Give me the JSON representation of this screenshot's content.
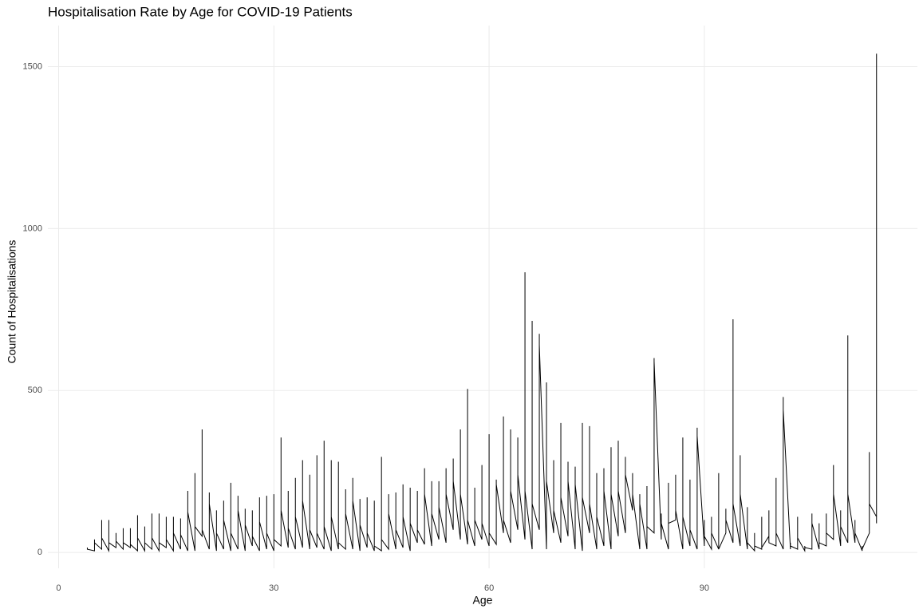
{
  "chart_data": {
    "type": "line",
    "title": "Hospitalisation Rate by Age for COVID-19 Patients",
    "x_label": "Age",
    "y_label": "Count of Hospitalisations",
    "color": "#000000",
    "grid": true,
    "xlim": [
      -1.5,
      119.7
    ],
    "ylim": [
      -49,
      1627
    ],
    "xticks": [
      0,
      30,
      60,
      90
    ],
    "yticks": [
      0,
      500,
      1000,
      1500
    ],
    "x": [
      4,
      4,
      4,
      5,
      5,
      5,
      6,
      6,
      6,
      7,
      7,
      7,
      8,
      8,
      8,
      9,
      9,
      9,
      10,
      10,
      10,
      11,
      11,
      11,
      12,
      12,
      12,
      13,
      13,
      13,
      14,
      14,
      14,
      15,
      15,
      15,
      16,
      16,
      16,
      17,
      17,
      17,
      18,
      18,
      18,
      19,
      19,
      19,
      20,
      20,
      20,
      21,
      21,
      21,
      22,
      22,
      22,
      23,
      23,
      23,
      24,
      24,
      24,
      25,
      25,
      25,
      26,
      26,
      26,
      27,
      27,
      27,
      28,
      28,
      28,
      29,
      29,
      29,
      30,
      30,
      30,
      31,
      31,
      31,
      32,
      32,
      32,
      33,
      33,
      33,
      34,
      34,
      34,
      35,
      35,
      35,
      36,
      36,
      36,
      37,
      37,
      37,
      38,
      38,
      38,
      39,
      39,
      39,
      40,
      40,
      40,
      41,
      41,
      41,
      42,
      42,
      42,
      43,
      43,
      43,
      44,
      44,
      44,
      45,
      45,
      45,
      46,
      46,
      46,
      47,
      47,
      47,
      48,
      48,
      48,
      49,
      49,
      49,
      50,
      50,
      50,
      51,
      51,
      51,
      52,
      52,
      52,
      53,
      53,
      53,
      54,
      54,
      54,
      55,
      55,
      55,
      56,
      56,
      56,
      57,
      57,
      57,
      58,
      58,
      58,
      59,
      59,
      59,
      60,
      60,
      60,
      61,
      61,
      61,
      62,
      62,
      62,
      63,
      63,
      63,
      64,
      64,
      64,
      65,
      65,
      65,
      66,
      66,
      66,
      67,
      67,
      67,
      68,
      68,
      68,
      69,
      69,
      69,
      70,
      70,
      70,
      71,
      71,
      71,
      72,
      72,
      72,
      73,
      73,
      73,
      74,
      74,
      74,
      75,
      75,
      75,
      76,
      76,
      76,
      77,
      77,
      77,
      78,
      78,
      78,
      79,
      79,
      79,
      80,
      80,
      80,
      81,
      81,
      81,
      82,
      82,
      82,
      83,
      83,
      83,
      84,
      84,
      84,
      85,
      85,
      85,
      86,
      86,
      86,
      87,
      87,
      87,
      88,
      88,
      88,
      89,
      89,
      89,
      90,
      90,
      90,
      91,
      91,
      91,
      92,
      92,
      92,
      93,
      93,
      93,
      94,
      94,
      94,
      95,
      95,
      95,
      96,
      96,
      96,
      97,
      97,
      97,
      98,
      98,
      98,
      99,
      99,
      99,
      100,
      100,
      100,
      101,
      101,
      101,
      102,
      102,
      102,
      103,
      103,
      103,
      104,
      104,
      104,
      105,
      105,
      105,
      106,
      106,
      106,
      107,
      107,
      107,
      108,
      108,
      108,
      109,
      109,
      109,
      110,
      110,
      110,
      111,
      111,
      111,
      112,
      112,
      112,
      113,
      113,
      113,
      114,
      114,
      114
    ],
    "values": [
      10,
      15,
      10,
      5,
      40,
      30,
      10,
      100,
      45,
      5,
      100,
      30,
      15,
      60,
      35,
      10,
      75,
      30,
      15,
      75,
      25,
      5,
      115,
      45,
      5,
      80,
      30,
      10,
      120,
      45,
      5,
      120,
      30,
      15,
      110,
      40,
      5,
      110,
      60,
      10,
      105,
      55,
      5,
      190,
      125,
      5,
      245,
      80,
      50,
      380,
      70,
      10,
      185,
      150,
      5,
      130,
      60,
      10,
      160,
      100,
      5,
      215,
      60,
      10,
      175,
      130,
      5,
      135,
      85,
      20,
      130,
      50,
      5,
      170,
      95,
      10,
      175,
      60,
      5,
      180,
      40,
      20,
      355,
      130,
      15,
      190,
      75,
      10,
      230,
      110,
      15,
      285,
      160,
      10,
      240,
      70,
      15,
      300,
      60,
      10,
      345,
      80,
      5,
      285,
      110,
      10,
      280,
      30,
      10,
      195,
      120,
      10,
      230,
      160,
      5,
      165,
      85,
      15,
      170,
      60,
      5,
      160,
      20,
      5,
      295,
      40,
      10,
      180,
      120,
      10,
      185,
      70,
      15,
      210,
      110,
      5,
      200,
      90,
      30,
      190,
      70,
      25,
      260,
      180,
      20,
      220,
      120,
      40,
      220,
      140,
      30,
      260,
      180,
      70,
      290,
      220,
      40,
      380,
      180,
      25,
      505,
      100,
      20,
      200,
      100,
      40,
      270,
      90,
      20,
      365,
      60,
      25,
      225,
      210,
      60,
      420,
      100,
      30,
      380,
      190,
      70,
      355,
      240,
      40,
      865,
      190,
      10,
      715,
      150,
      70,
      675,
      640,
      10,
      525,
      220,
      60,
      285,
      130,
      30,
      400,
      170,
      50,
      280,
      220,
      10,
      265,
      210,
      5,
      400,
      170,
      60,
      390,
      150,
      10,
      245,
      110,
      20,
      260,
      190,
      10,
      325,
      180,
      50,
      345,
      190,
      60,
      295,
      240,
      130,
      245,
      180,
      10,
      180,
      150,
      10,
      205,
      80,
      60,
      600,
      590,
      40,
      120,
      90,
      10,
      215,
      90,
      100,
      240,
      130,
      10,
      355,
      110,
      20,
      225,
      70,
      10,
      385,
      360,
      20,
      100,
      50,
      10,
      110,
      60,
      10,
      245,
      10,
      60,
      135,
      100,
      30,
      720,
      150,
      20,
      300,
      180,
      10,
      140,
      30,
      5,
      60,
      20,
      10,
      110,
      15,
      50,
      130,
      30,
      20,
      230,
      60,
      10,
      480,
      440,
      10,
      30,
      20,
      10,
      110,
      45,
      5,
      20,
      15,
      10,
      120,
      90,
      10,
      90,
      30,
      20,
      120,
      60,
      40,
      270,
      180,
      20,
      130,
      80,
      30,
      670,
      180,
      30,
      100,
      60,
      5,
      20,
      10,
      60,
      310,
      150,
      110,
      1540,
      90
    ]
  }
}
